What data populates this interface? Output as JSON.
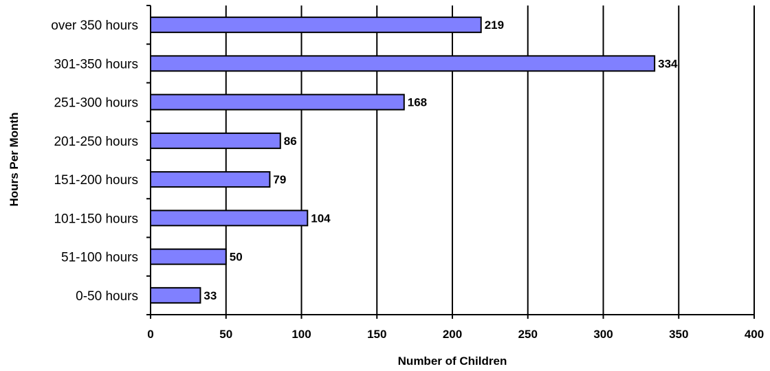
{
  "chart_data": {
    "type": "bar",
    "orientation": "horizontal",
    "categories": [
      "0-50 hours",
      "51-100 hours",
      "101-150 hours",
      "151-200 hours",
      "201-250 hours",
      "251-300 hours",
      "301-350 hours",
      "over 350 hours"
    ],
    "values": [
      33,
      50,
      104,
      79,
      86,
      168,
      334,
      219
    ],
    "data_labels": [
      "33",
      "50",
      "104",
      "79",
      "86",
      "168",
      "334",
      "219"
    ],
    "xlabel": "Number of Children",
    "ylabel": "Hours Per Month",
    "xlim": [
      0,
      400
    ],
    "x_ticks": [
      0,
      50,
      100,
      150,
      200,
      250,
      300,
      350,
      400
    ],
    "x_tick_labels": [
      "0",
      "50",
      "100",
      "150",
      "200",
      "250",
      "300",
      "350",
      "400"
    ],
    "grid": "vertical",
    "legend": "none",
    "bar_color": "#8080FF"
  }
}
